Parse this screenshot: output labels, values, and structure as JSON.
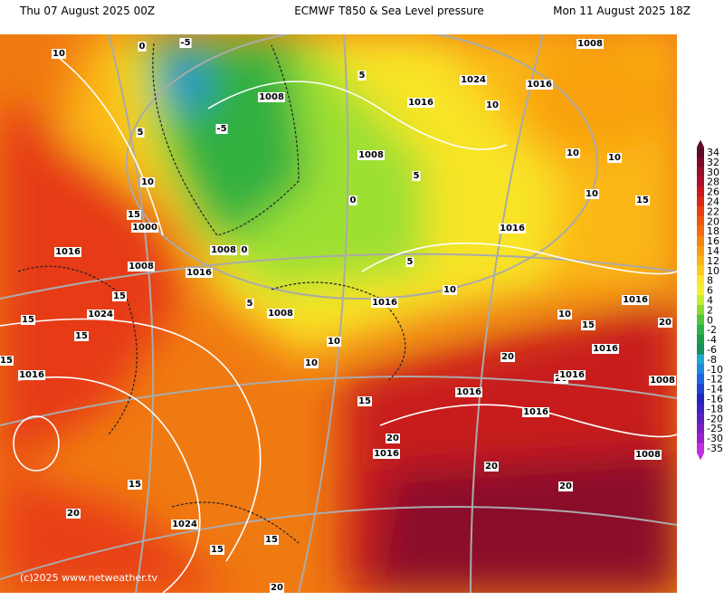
{
  "header": {
    "left": "Thu 07 August 2025 00Z",
    "title": "ECMWF T850 & Sea Level pressure",
    "right": "Mon 11 August 2025 18Z"
  },
  "colorbar": {
    "ticks": [
      34,
      32,
      30,
      28,
      26,
      24,
      22,
      20,
      18,
      16,
      14,
      12,
      10,
      8,
      6,
      4,
      2,
      0,
      -2,
      -4,
      -6,
      -8,
      -10,
      -12,
      -14,
      -16,
      -18,
      -20,
      -25,
      -30,
      -35
    ],
    "colors": [
      "#5a0a28",
      "#7a0a2a",
      "#98102c",
      "#b0102a",
      "#c81820",
      "#dc2814",
      "#e84010",
      "#f05610",
      "#f46c10",
      "#f68410",
      "#f89c10",
      "#fab414",
      "#fccc1c",
      "#fce428",
      "#f4f030",
      "#c8ec30",
      "#8cdc30",
      "#4cc838",
      "#2cb448",
      "#1c9c48",
      "#14905c",
      "#20a8d0",
      "#2088e0",
      "#2064e0",
      "#2044d0",
      "#2424c0",
      "#4020c0",
      "#5c20c0",
      "#7c20c4",
      "#9c20cc",
      "#c030e0"
    ]
  },
  "contour_labels": [
    "10",
    "0",
    "-5",
    "1008",
    "5",
    "1016",
    "1024",
    "1016",
    "1008",
    "10",
    "5",
    "-5",
    "10",
    "1008",
    "5",
    "0",
    "10",
    "10",
    "10",
    "15",
    "1016",
    "15",
    "1000",
    "1016",
    "1008",
    "1008",
    "0",
    "1016",
    "5",
    "10",
    "1016",
    "5",
    "1008",
    "15",
    "1024",
    "15",
    "15",
    "10",
    "1016",
    "10",
    "15",
    "20",
    "1016",
    "15",
    "1016",
    "10",
    "20",
    "20",
    "1016",
    "1008",
    "1016",
    "15",
    "1016",
    "20",
    "1016",
    "20",
    "1008",
    "15",
    "20",
    "20",
    "1024",
    "15",
    "15",
    "20"
  ],
  "credit": "(c)2025 www.netweather.tv"
}
